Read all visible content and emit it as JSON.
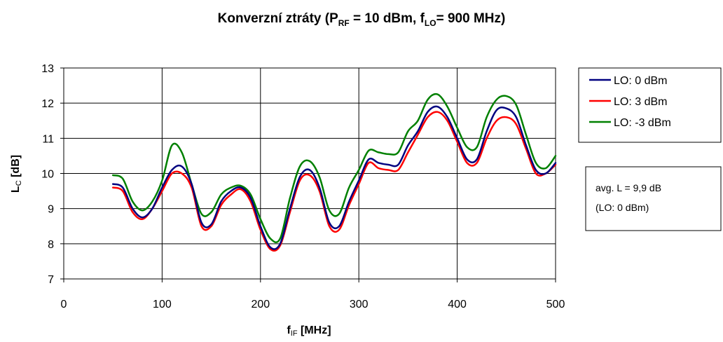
{
  "chart_data": {
    "type": "line",
    "title": {
      "main": "Konverzní ztráty (P",
      "p_sub": "RF",
      "mid": " = 10 dBm, f",
      "f_sub": "LO",
      "end": "= 900 MHz)"
    },
    "xlabel": {
      "main": "f",
      "sub": "IF",
      "unit": " [MHz]"
    },
    "ylabel": {
      "main": "L",
      "sub": "C",
      "unit": " [dB]"
    },
    "xlim": [
      0,
      500
    ],
    "ylim": [
      7,
      13
    ],
    "x_ticks": [
      "0",
      "100",
      "200",
      "300",
      "400",
      "500"
    ],
    "y_ticks": [
      "7",
      "8",
      "9",
      "10",
      "11",
      "12",
      "13"
    ],
    "grid": true,
    "legend_position": "right",
    "series": [
      {
        "name": "LO: 0 dBm",
        "color": "#000080",
        "x": [
          50,
          60,
          70,
          80,
          90,
          100,
          110,
          120,
          130,
          140,
          150,
          160,
          170,
          180,
          190,
          200,
          210,
          220,
          230,
          240,
          250,
          260,
          270,
          280,
          290,
          300,
          310,
          320,
          330,
          340,
          350,
          360,
          370,
          380,
          390,
          400,
          410,
          420,
          430,
          440,
          450,
          460,
          470,
          480,
          490,
          500
        ],
        "values": [
          9.7,
          9.6,
          9.0,
          8.75,
          9.0,
          9.6,
          10.1,
          10.2,
          9.7,
          8.6,
          8.55,
          9.2,
          9.5,
          9.6,
          9.3,
          8.5,
          7.9,
          8.0,
          9.0,
          9.9,
          10.1,
          9.6,
          8.6,
          8.5,
          9.2,
          9.8,
          10.4,
          10.3,
          10.25,
          10.25,
          10.8,
          11.2,
          11.75,
          11.9,
          11.6,
          11.0,
          10.4,
          10.4,
          11.2,
          11.8,
          11.85,
          11.6,
          10.8,
          10.1,
          10.0,
          10.3
        ]
      },
      {
        "name": "LO: 3 dBm",
        "color": "#ff0000",
        "x": [
          50,
          60,
          70,
          80,
          90,
          100,
          110,
          120,
          130,
          140,
          150,
          160,
          170,
          180,
          190,
          200,
          210,
          220,
          230,
          240,
          250,
          260,
          270,
          280,
          290,
          300,
          310,
          320,
          330,
          340,
          350,
          360,
          370,
          380,
          390,
          400,
          410,
          420,
          430,
          440,
          450,
          460,
          470,
          480,
          490,
          500
        ],
        "values": [
          9.6,
          9.5,
          8.9,
          8.7,
          9.0,
          9.5,
          10.0,
          10.0,
          9.6,
          8.5,
          8.5,
          9.1,
          9.4,
          9.55,
          9.2,
          8.4,
          7.85,
          7.95,
          8.9,
          9.8,
          9.95,
          9.5,
          8.5,
          8.4,
          9.1,
          9.7,
          10.3,
          10.15,
          10.1,
          10.1,
          10.6,
          11.1,
          11.6,
          11.75,
          11.5,
          10.9,
          10.3,
          10.3,
          11.0,
          11.5,
          11.6,
          11.4,
          10.7,
          10.0,
          10.0,
          10.25
        ]
      },
      {
        "name": "LO: -3 dBm",
        "color": "#008000",
        "x": [
          50,
          60,
          70,
          80,
          90,
          100,
          110,
          120,
          130,
          140,
          150,
          160,
          170,
          180,
          190,
          200,
          210,
          220,
          230,
          240,
          250,
          260,
          270,
          280,
          290,
          300,
          310,
          320,
          330,
          340,
          350,
          360,
          370,
          380,
          390,
          400,
          410,
          420,
          430,
          440,
          450,
          460,
          470,
          480,
          490,
          500
        ],
        "values": [
          9.95,
          9.85,
          9.2,
          8.95,
          9.2,
          9.8,
          10.8,
          10.6,
          9.7,
          8.85,
          8.9,
          9.4,
          9.6,
          9.65,
          9.4,
          8.7,
          8.15,
          8.15,
          9.3,
          10.2,
          10.35,
          9.9,
          8.95,
          8.85,
          9.6,
          10.1,
          10.65,
          10.6,
          10.55,
          10.6,
          11.2,
          11.5,
          12.1,
          12.25,
          11.9,
          11.3,
          10.75,
          10.75,
          11.6,
          12.1,
          12.2,
          11.95,
          11.1,
          10.3,
          10.15,
          10.5
        ]
      }
    ],
    "annotation": {
      "line1": "avg. L = 9,9 dB",
      "line2": "(LO: 0 dBm)"
    }
  }
}
